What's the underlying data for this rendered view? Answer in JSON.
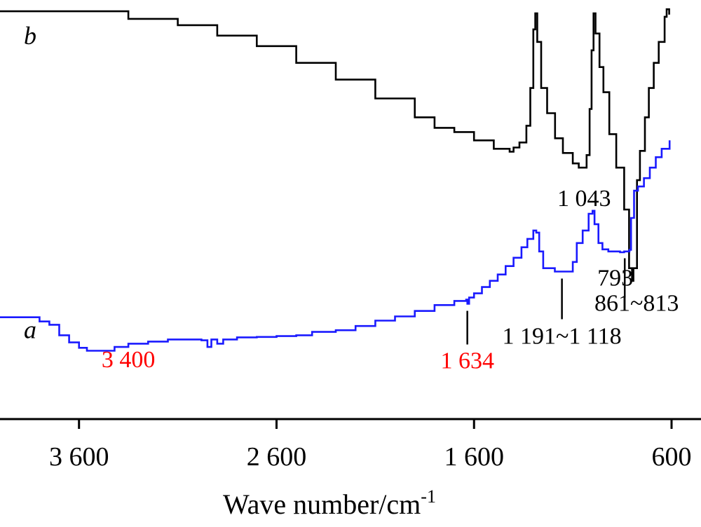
{
  "chart_data": {
    "type": "line",
    "title": "",
    "xlabel": "Wave number/cm",
    "xlabel_sup": "-1",
    "ylabel": "",
    "xlim": [
      4000,
      600
    ],
    "x_reversed": true,
    "ylim": [
      0,
      1
    ],
    "grid": false,
    "x_ticks": [
      {
        "value": 3600,
        "label": "3 600"
      },
      {
        "value": 2600,
        "label": "2 600"
      },
      {
        "value": 1600,
        "label": "1 600"
      },
      {
        "value": 600,
        "label": "600"
      }
    ],
    "colors": {
      "a": "#1a1aff",
      "b": "#000000",
      "highlight": "#ff0000",
      "axis": "#000000"
    },
    "series": [
      {
        "name": "b",
        "label": "b",
        "color": "#000000",
        "points": [
          [
            4000,
            0.973
          ],
          [
            3700,
            0.973
          ],
          [
            3350,
            0.955
          ],
          [
            3100,
            0.94
          ],
          [
            2900,
            0.915
          ],
          [
            2700,
            0.89
          ],
          [
            2500,
            0.85
          ],
          [
            2300,
            0.81
          ],
          [
            2100,
            0.765
          ],
          [
            1900,
            0.72
          ],
          [
            1800,
            0.695
          ],
          [
            1700,
            0.685
          ],
          [
            1600,
            0.665
          ],
          [
            1500,
            0.645
          ],
          [
            1420,
            0.638
          ],
          [
            1400,
            0.648
          ],
          [
            1370,
            0.66
          ],
          [
            1335,
            0.7
          ],
          [
            1315,
            0.79
          ],
          [
            1300,
            0.93
          ],
          [
            1290,
            0.968
          ],
          [
            1280,
            0.9
          ],
          [
            1260,
            0.79
          ],
          [
            1230,
            0.73
          ],
          [
            1190,
            0.67
          ],
          [
            1150,
            0.635
          ],
          [
            1100,
            0.61
          ],
          [
            1070,
            0.6
          ],
          [
            1043,
            0.6
          ],
          [
            1030,
            0.63
          ],
          [
            1015,
            0.74
          ],
          [
            1005,
            0.88
          ],
          [
            995,
            0.968
          ],
          [
            985,
            0.92
          ],
          [
            965,
            0.84
          ],
          [
            945,
            0.78
          ],
          [
            915,
            0.68
          ],
          [
            880,
            0.6
          ],
          [
            840,
            0.5
          ],
          [
            815,
            0.36
          ],
          [
            800,
            0.33
          ],
          [
            793,
            0.36
          ],
          [
            775,
            0.57
          ],
          [
            760,
            0.64
          ],
          [
            735,
            0.72
          ],
          [
            715,
            0.79
          ],
          [
            690,
            0.85
          ],
          [
            665,
            0.9
          ],
          [
            635,
            0.96
          ],
          [
            625,
            0.978
          ],
          [
            612,
            0.965
          ]
        ]
      },
      {
        "name": "a",
        "label": "a",
        "color": "#1a1aff",
        "points": [
          [
            4000,
            0.243
          ],
          [
            3870,
            0.243
          ],
          [
            3800,
            0.233
          ],
          [
            3750,
            0.225
          ],
          [
            3700,
            0.2
          ],
          [
            3650,
            0.183
          ],
          [
            3600,
            0.17
          ],
          [
            3560,
            0.163
          ],
          [
            3480,
            0.163
          ],
          [
            3420,
            0.172
          ],
          [
            3350,
            0.18
          ],
          [
            3250,
            0.185
          ],
          [
            3150,
            0.19
          ],
          [
            3050,
            0.19
          ],
          [
            2980,
            0.188
          ],
          [
            2950,
            0.172
          ],
          [
            2930,
            0.19
          ],
          [
            2900,
            0.18
          ],
          [
            2870,
            0.19
          ],
          [
            2800,
            0.195
          ],
          [
            2700,
            0.196
          ],
          [
            2600,
            0.198
          ],
          [
            2500,
            0.2
          ],
          [
            2420,
            0.208
          ],
          [
            2300,
            0.212
          ],
          [
            2200,
            0.222
          ],
          [
            2100,
            0.235
          ],
          [
            2000,
            0.245
          ],
          [
            1900,
            0.258
          ],
          [
            1800,
            0.272
          ],
          [
            1700,
            0.282
          ],
          [
            1640,
            0.285
          ],
          [
            1634,
            0.275
          ],
          [
            1625,
            0.29
          ],
          [
            1600,
            0.3
          ],
          [
            1560,
            0.315
          ],
          [
            1520,
            0.33
          ],
          [
            1480,
            0.345
          ],
          [
            1440,
            0.365
          ],
          [
            1400,
            0.385
          ],
          [
            1360,
            0.41
          ],
          [
            1330,
            0.43
          ],
          [
            1300,
            0.45
          ],
          [
            1285,
            0.445
          ],
          [
            1270,
            0.4
          ],
          [
            1250,
            0.36
          ],
          [
            1191,
            0.352
          ],
          [
            1140,
            0.352
          ],
          [
            1118,
            0.352
          ],
          [
            1100,
            0.375
          ],
          [
            1080,
            0.42
          ],
          [
            1050,
            0.45
          ],
          [
            1020,
            0.49
          ],
          [
            1000,
            0.497
          ],
          [
            990,
            0.465
          ],
          [
            970,
            0.42
          ],
          [
            950,
            0.405
          ],
          [
            920,
            0.4
          ],
          [
            861,
            0.398
          ],
          [
            840,
            0.4
          ],
          [
            813,
            0.404
          ],
          [
            805,
            0.48
          ],
          [
            790,
            0.545
          ],
          [
            770,
            0.555
          ],
          [
            740,
            0.575
          ],
          [
            710,
            0.6
          ],
          [
            680,
            0.625
          ],
          [
            650,
            0.645
          ],
          [
            610,
            0.665
          ]
        ]
      }
    ],
    "annotations": [
      {
        "text": "1 043",
        "series": "b",
        "x": 1043,
        "marker": false,
        "color": "#000000"
      },
      {
        "text": "793",
        "series": "b",
        "x": 793,
        "marker": false,
        "color": "#000000"
      },
      {
        "text": "3 400",
        "series": "a",
        "x": 3400,
        "marker": false,
        "color": "#ff0000"
      },
      {
        "text": "1 634",
        "series": "a",
        "x": 1634,
        "marker": true,
        "color": "#ff0000"
      },
      {
        "text": "1 191~1 118",
        "series": "a",
        "x": 1155,
        "marker": true,
        "color": "#000000"
      },
      {
        "text": "861~813",
        "series": "a",
        "x": 837,
        "marker": true,
        "color": "#000000"
      }
    ]
  }
}
